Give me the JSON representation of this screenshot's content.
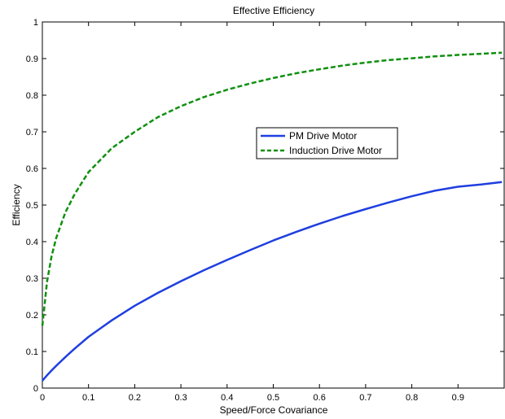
{
  "chart_data": {
    "type": "line",
    "title": "Effective Efficiency",
    "xlabel": "Speed/Force Covariance",
    "ylabel": "Efficiency",
    "xlim": [
      0,
      1
    ],
    "ylim": [
      0,
      1
    ],
    "xticks": [
      0,
      0.1,
      0.2,
      0.3,
      0.4,
      0.5,
      0.6,
      0.7,
      0.8,
      0.9
    ],
    "xtick_labels": [
      "0",
      "0.1",
      "0.2",
      "0.3",
      "0.4",
      "0.5",
      "0.6",
      "0.7",
      "0.8",
      "0.9"
    ],
    "yticks": [
      0,
      0.1,
      0.2,
      0.3,
      0.4,
      0.5,
      0.6,
      0.7,
      0.8,
      0.9,
      1
    ],
    "ytick_labels": [
      "0",
      "0.1",
      "0.2",
      "0.3",
      "0.4",
      "0.5",
      "0.6",
      "0.7",
      "0.8",
      "0.9",
      "1"
    ],
    "grid": false,
    "legend_position": "center-right",
    "x": [
      0,
      0.01,
      0.02,
      0.03,
      0.05,
      0.07,
      0.1,
      0.15,
      0.2,
      0.25,
      0.3,
      0.35,
      0.4,
      0.45,
      0.5,
      0.55,
      0.6,
      0.65,
      0.7,
      0.75,
      0.8,
      0.85,
      0.9,
      0.95,
      0.995
    ],
    "series": [
      {
        "name": "PM Drive Motor",
        "color": "#1f3fe0",
        "style": "solid",
        "values": [
          0.02,
          0.035,
          0.048,
          0.061,
          0.085,
          0.108,
          0.14,
          0.185,
          0.225,
          0.26,
          0.292,
          0.322,
          0.35,
          0.377,
          0.403,
          0.427,
          0.449,
          0.47,
          0.489,
          0.507,
          0.524,
          0.539,
          0.55,
          0.556,
          0.563
        ]
      },
      {
        "name": "Induction Drive Motor",
        "color": "#109010",
        "style": "dashed",
        "values": [
          0.17,
          0.29,
          0.36,
          0.41,
          0.48,
          0.53,
          0.59,
          0.655,
          0.7,
          0.74,
          0.77,
          0.795,
          0.815,
          0.832,
          0.847,
          0.86,
          0.871,
          0.881,
          0.889,
          0.896,
          0.901,
          0.906,
          0.91,
          0.913,
          0.916
        ]
      }
    ]
  }
}
